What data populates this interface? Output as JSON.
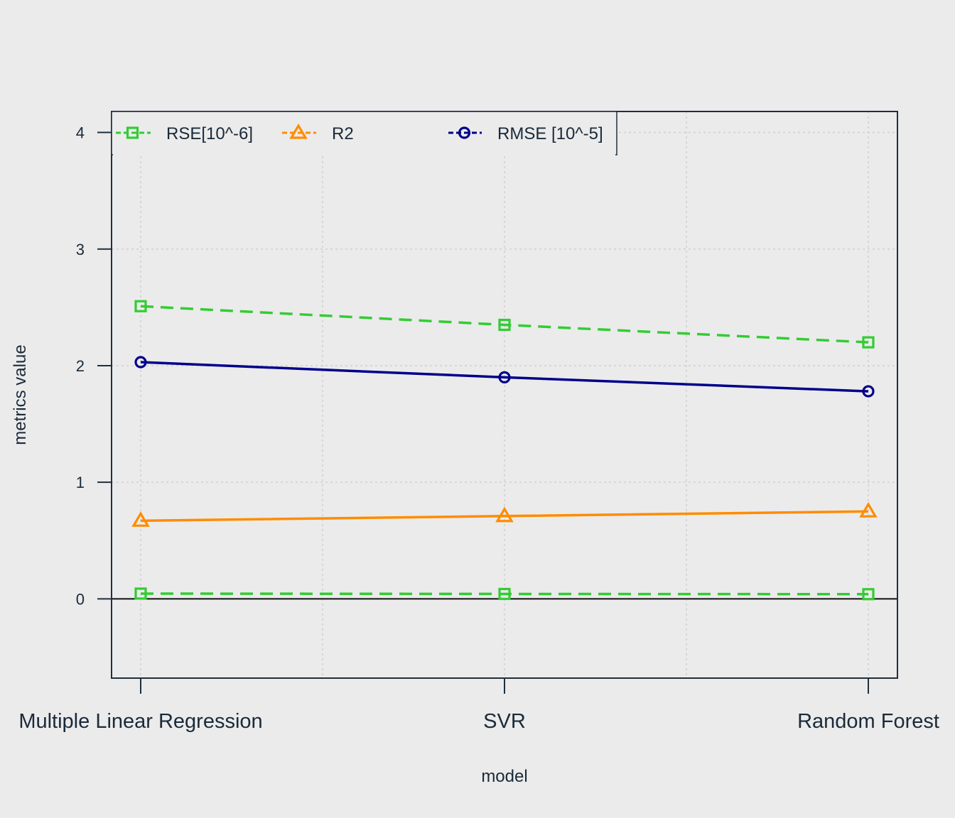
{
  "chart_data": {
    "type": "line",
    "categories": [
      "Multiple Linear Regression",
      "SVR",
      "Random Forest"
    ],
    "xlabel": "model",
    "ylabel": "metrics value",
    "ylim": [
      -0.68,
      4.18
    ],
    "yticks": [
      0,
      1,
      2,
      3,
      4
    ],
    "grid": true,
    "legend_position": "top-left",
    "series": [
      {
        "name": "RSE[10^-6]",
        "legend": true,
        "values": [
          2.51,
          2.35,
          2.2
        ],
        "color": "#33cc33",
        "dash": "dashed",
        "marker": "square"
      },
      {
        "name": "",
        "legend": false,
        "values": [
          0.045,
          0.042,
          0.04
        ],
        "color": "#33cc33",
        "dash": "dashed",
        "marker": "square"
      },
      {
        "name": "R2",
        "legend": true,
        "values": [
          0.67,
          0.71,
          0.75
        ],
        "color": "#ff8c00",
        "dash": "solid",
        "marker": "triangle"
      },
      {
        "name": "RMSE [10^-5]",
        "legend": true,
        "values": [
          2.03,
          1.9,
          1.78
        ],
        "color": "#00008b",
        "dash": "solid",
        "marker": "circle"
      }
    ]
  }
}
